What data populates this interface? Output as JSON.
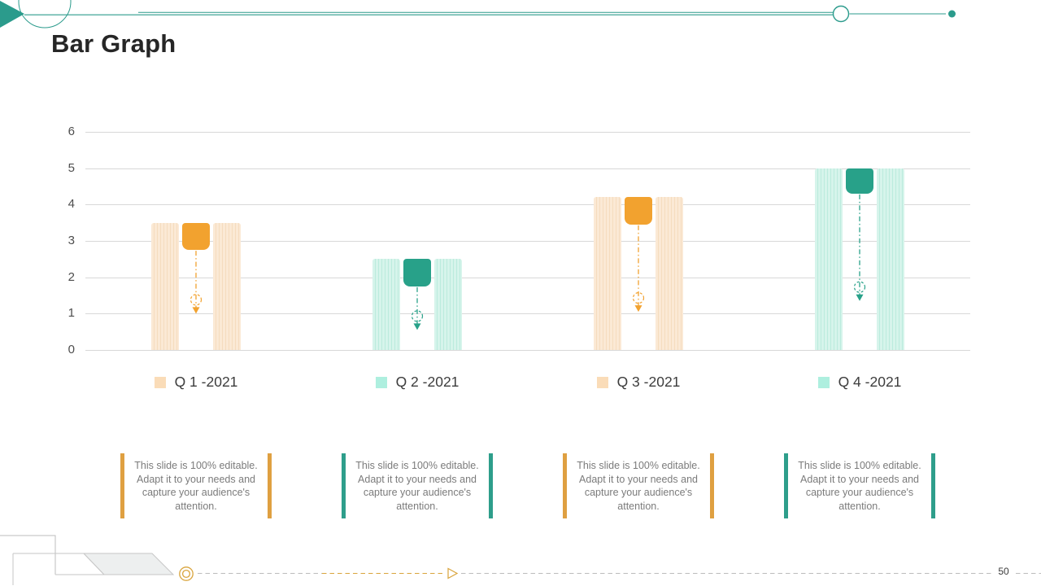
{
  "slide": {
    "title": "Bar Graph",
    "page_number": "50"
  },
  "chart_data": {
    "type": "bar",
    "title": "",
    "categories": [
      "Q 1 -2021",
      "Q 2 -2021",
      "Q 3 -2021",
      "Q 4 -2021"
    ],
    "values": [
      3.5,
      2.5,
      4.2,
      5.0
    ],
    "marker_bottom_values": [
      2.75,
      1.75,
      3.45,
      4.3
    ],
    "arrow_tip_values": [
      1.0,
      0.55,
      1.05,
      1.35
    ],
    "series_palette": [
      "orange",
      "teal",
      "orange",
      "teal"
    ],
    "ylim": [
      0,
      6
    ],
    "yticks": [
      0,
      1,
      2,
      3,
      4,
      5,
      6
    ],
    "grid": true,
    "legend_position": "bottom",
    "bar_style": "paired striped bars with solid rounded value marker and dashed drop arrow"
  },
  "callouts": [
    {
      "text": "This slide is 100% editable. Adapt it to your needs and capture your audience's attention.",
      "accent": "orange"
    },
    {
      "text": "This slide is 100% editable. Adapt it to your needs and capture your audience's attention.",
      "accent": "teal"
    },
    {
      "text": "This slide is 100% editable. Adapt it to your needs and capture your audience's attention.",
      "accent": "orange"
    },
    {
      "text": "This slide is 100% editable. Adapt it to your needs and capture your audience's attention.",
      "accent": "teal"
    }
  ],
  "colors": {
    "orange_solid": "#F2A22F",
    "orange_light": "#FBE9D5",
    "orange_stripe": "#F5DCBE",
    "orange_legend": "#FADCB8",
    "teal_solid": "#28A189",
    "teal_light": "#D6F4EB",
    "teal_stripe": "#BBEBDD",
    "teal_legend": "#AEEFDF",
    "callout_orange": "#DFA041",
    "callout_teal": "#2E9E8B",
    "deco_teal": "#2B9B8C",
    "deco_gold": "#D9A43C",
    "deco_gray": "#B8B8B8",
    "gridline": "#D8D8D8"
  }
}
